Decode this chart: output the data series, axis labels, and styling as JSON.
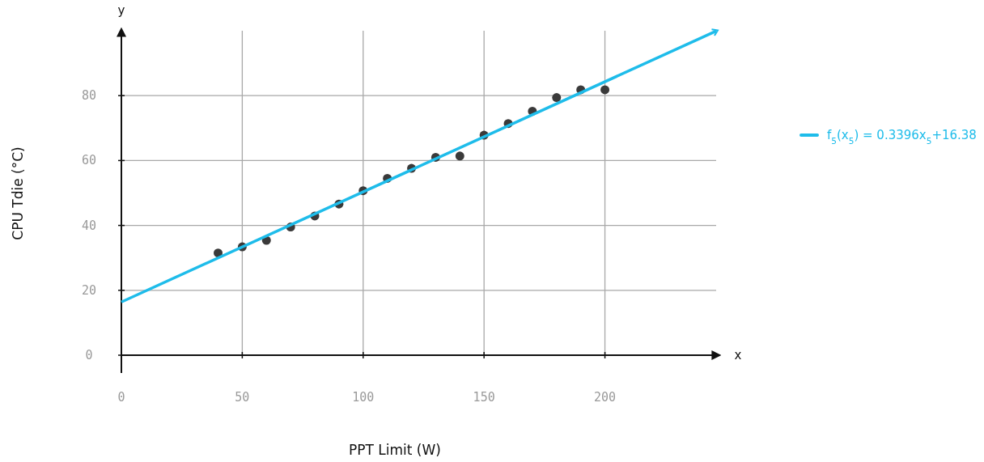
{
  "chart_data": {
    "type": "scatter",
    "xlabel": "PPT Limit (W)",
    "ylabel": "CPU Tdie (°C)",
    "annotations": [
      "x",
      "y"
    ],
    "xlim": [
      0,
      246
    ],
    "ylim": [
      0,
      100
    ],
    "xticks": [
      0,
      50,
      100,
      150,
      200
    ],
    "yticks": [
      0,
      20,
      40,
      60,
      80
    ],
    "grid": true,
    "legend": "right",
    "series": [
      {
        "marker": "circle",
        "color": "#3a3a3a",
        "x": [
          40,
          50,
          60,
          70,
          80,
          90,
          100,
          110,
          120,
          130,
          140,
          150,
          160,
          170,
          180,
          190,
          200
        ],
        "values": [
          31.5,
          33.4,
          35.4,
          39.5,
          42.9,
          46.6,
          50.7,
          54.5,
          57.6,
          61.0,
          61.4,
          67.8,
          71.4,
          75.2,
          79.4,
          81.8,
          81.8
        ]
      },
      {
        "type": "line",
        "name": "f$_{5}$(x$_{5}$) = 0.3396x$_{5}$+16.38",
        "color": "#1ebcea",
        "line_style": "solid",
        "x": [
          0,
          246
        ],
        "values": [
          16.4,
          99.9
        ]
      }
    ]
  }
}
